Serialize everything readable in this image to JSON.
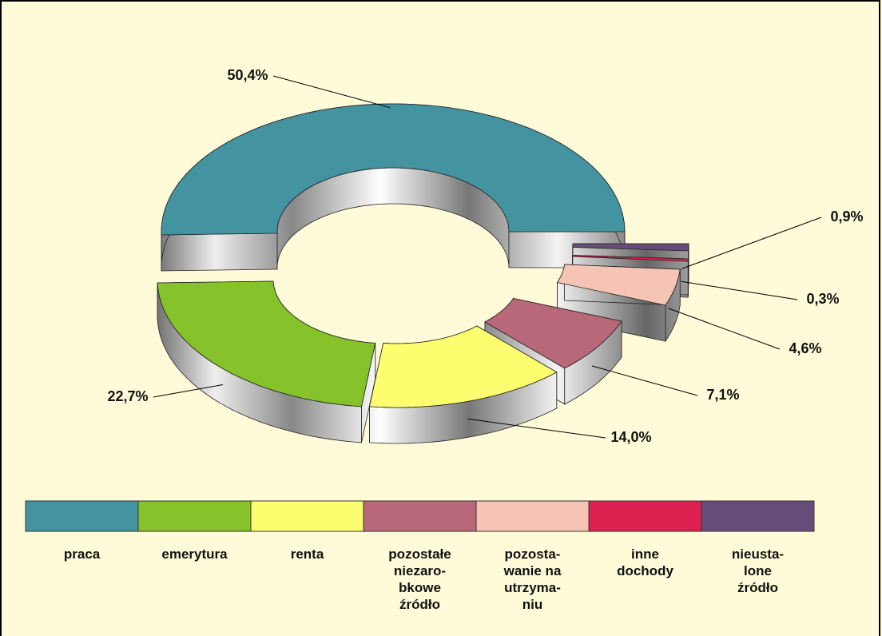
{
  "chart_data": {
    "type": "donut",
    "categories": [
      "praca",
      "emerytura",
      "renta",
      "pozostałe\nniezaro-\nbkowe\nźródło",
      "pozosta-\nwanie na\nutrzyma-\nniu",
      "inne\ndochody",
      "nieusta-\nlone\nźródło"
    ],
    "values": [
      50.4,
      22.7,
      14.0,
      7.1,
      4.6,
      0.3,
      0.9
    ],
    "value_labels": [
      "50,4%",
      "22,7%",
      "14,0%",
      "7,1%",
      "4,6%",
      "0,3%",
      "0,9%"
    ],
    "colors": [
      "#4493a0",
      "#86c22a",
      "#fdfd70",
      "#b86878",
      "#f5c4b4",
      "#dc2050",
      "#664c78"
    ],
    "legend": "bottom"
  }
}
